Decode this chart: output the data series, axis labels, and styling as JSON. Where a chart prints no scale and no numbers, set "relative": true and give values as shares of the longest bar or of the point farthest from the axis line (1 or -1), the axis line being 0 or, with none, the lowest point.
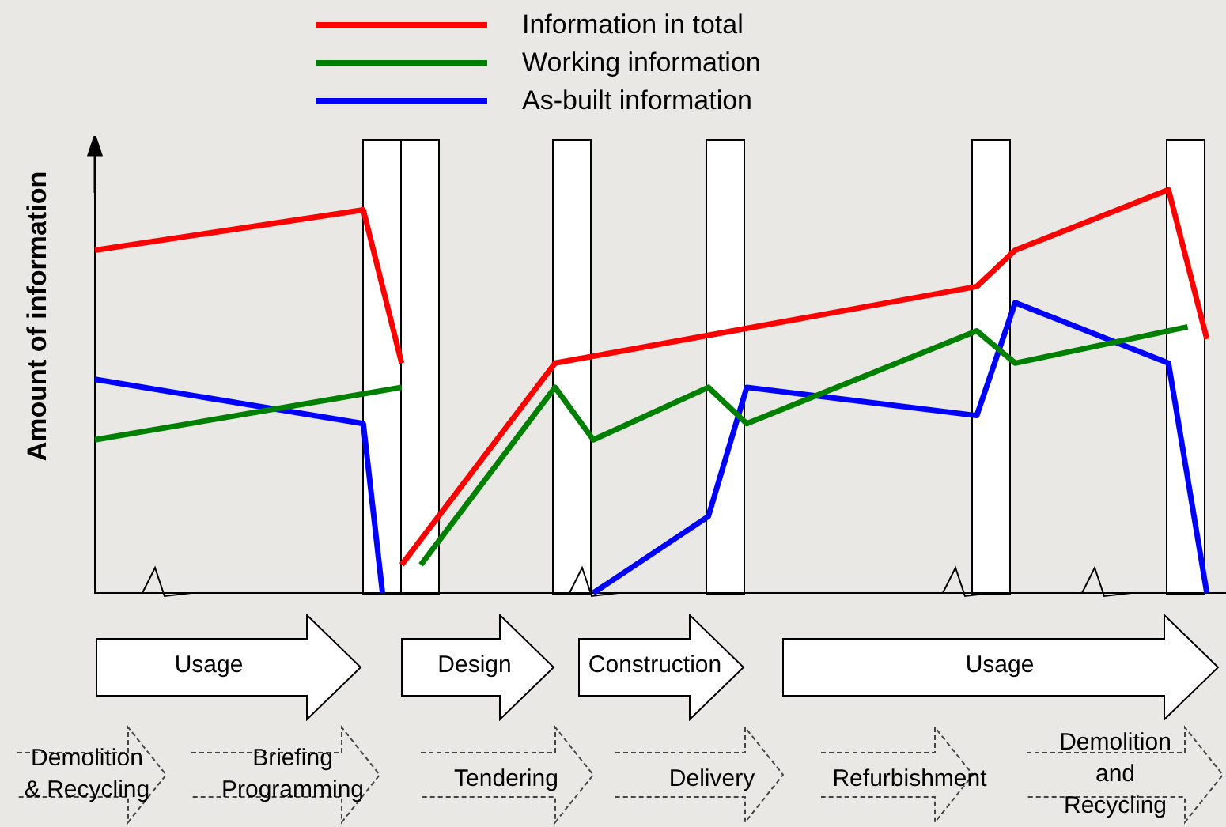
{
  "chart_data": {
    "type": "line",
    "relative": true,
    "ylabel": "Amount of information",
    "legend": "top",
    "marker": "none",
    "line_style": "solid",
    "categories": [
      null,
      null,
      null,
      null,
      null,
      null,
      null,
      null,
      null,
      null,
      null,
      null,
      null,
      null,
      null,
      null,
      null,
      null,
      null,
      null,
      null,
      null,
      null,
      null,
      null,
      null,
      null,
      null,
      null,
      null,
      null,
      null,
      null,
      null,
      null,
      null,
      null,
      null,
      null,
      null,
      null,
      null,
      null,
      null,
      null,
      null,
      null,
      null,
      null,
      null,
      null,
      null,
      null,
      null,
      null,
      null,
      null,
      null,
      null,
      null
    ],
    "series": [
      {
        "name": "Information in total",
        "color": "#ff0000",
        "values": [
          0.85,
          null,
          null,
          null,
          null,
          null,
          null,
          null,
          null,
          null,
          null,
          null,
          null,
          null,
          0.95,
          null,
          0.57,
          null,
          null,
          null,
          null,
          null,
          null,
          null,
          null,
          null,
          null,
          null,
          null,
          null,
          null,
          null,
          null,
          null,
          null,
          null,
          null,
          null,
          null,
          null,
          null,
          null,
          null,
          null,
          null,
          null,
          null,
          null,
          null,
          null,
          null,
          null,
          null,
          null,
          null,
          null,
          null,
          null,
          null,
          null
        ]
      },
      {
        "color": "#ff0000",
        "values": [
          null,
          null,
          null,
          null,
          null,
          null,
          null,
          null,
          null,
          null,
          null,
          null,
          null,
          null,
          null,
          null,
          0.07,
          null,
          null,
          null,
          null,
          null,
          null,
          null,
          0.57,
          null,
          null,
          null,
          null,
          null,
          null,
          null,
          null,
          null,
          null,
          null,
          null,
          null,
          null,
          null,
          null,
          null,
          null,
          null,
          null,
          null,
          0.76,
          null,
          0.85,
          null,
          null,
          null,
          null,
          null,
          null,
          null,
          1,
          null,
          0.63,
          null
        ]
      },
      {
        "name": "Working information",
        "color": "#008000",
        "values": [
          0.38,
          null,
          null,
          null,
          null,
          null,
          null,
          null,
          null,
          null,
          null,
          null,
          null,
          null,
          null,
          null,
          0.51,
          null,
          null,
          null,
          null,
          null,
          null,
          null,
          null,
          null,
          null,
          null,
          null,
          null,
          null,
          null,
          null,
          null,
          null,
          null,
          null,
          null,
          null,
          null,
          null,
          null,
          null,
          null,
          null,
          null,
          null,
          null,
          null,
          null,
          null,
          null,
          null,
          null,
          null,
          null,
          null,
          null,
          null,
          null
        ]
      },
      {
        "color": "#008000",
        "values": [
          null,
          null,
          null,
          null,
          null,
          null,
          null,
          null,
          null,
          null,
          null,
          null,
          null,
          null,
          null,
          null,
          null,
          0.07,
          null,
          null,
          null,
          null,
          null,
          null,
          0.51,
          null,
          0.38,
          null,
          null,
          null,
          null,
          null,
          0.51,
          null,
          0.42,
          null,
          null,
          null,
          null,
          null,
          null,
          null,
          null,
          null,
          null,
          null,
          0.65,
          null,
          0.57,
          null,
          null,
          null,
          null,
          null,
          null,
          null,
          null,
          0.66,
          null,
          null
        ]
      },
      {
        "name": "As-built information",
        "color": "#0000ff",
        "values": [
          0.53,
          null,
          null,
          null,
          null,
          null,
          null,
          null,
          null,
          null,
          null,
          null,
          null,
          null,
          0.42,
          0,
          null,
          null,
          null,
          null,
          null,
          null,
          null,
          null,
          null,
          null,
          null,
          null,
          null,
          null,
          null,
          null,
          null,
          null,
          null,
          null,
          null,
          null,
          null,
          null,
          null,
          null,
          null,
          null,
          null,
          null,
          null,
          null,
          null,
          null,
          null,
          null,
          null,
          null,
          null,
          null,
          null,
          null,
          null,
          null
        ]
      },
      {
        "color": "#0000ff",
        "values": [
          null,
          null,
          null,
          null,
          null,
          null,
          null,
          null,
          null,
          null,
          null,
          null,
          null,
          null,
          null,
          null,
          null,
          null,
          null,
          null,
          null,
          null,
          null,
          null,
          null,
          null,
          0,
          null,
          null,
          null,
          null,
          null,
          0.19,
          null,
          0.51,
          null,
          null,
          null,
          null,
          null,
          null,
          null,
          null,
          null,
          null,
          null,
          0.44,
          null,
          0.72,
          null,
          null,
          null,
          null,
          null,
          null,
          null,
          0.57,
          null,
          0,
          null
        ]
      }
    ],
    "annotations": [
      "Usage",
      "Design",
      "Construction",
      "Usage",
      "Demolition\n& Recycling",
      "Briefing\nProgramming",
      "Tendering",
      "Delivery",
      "Refurbishment",
      "Demolition and\nRecycling"
    ]
  }
}
